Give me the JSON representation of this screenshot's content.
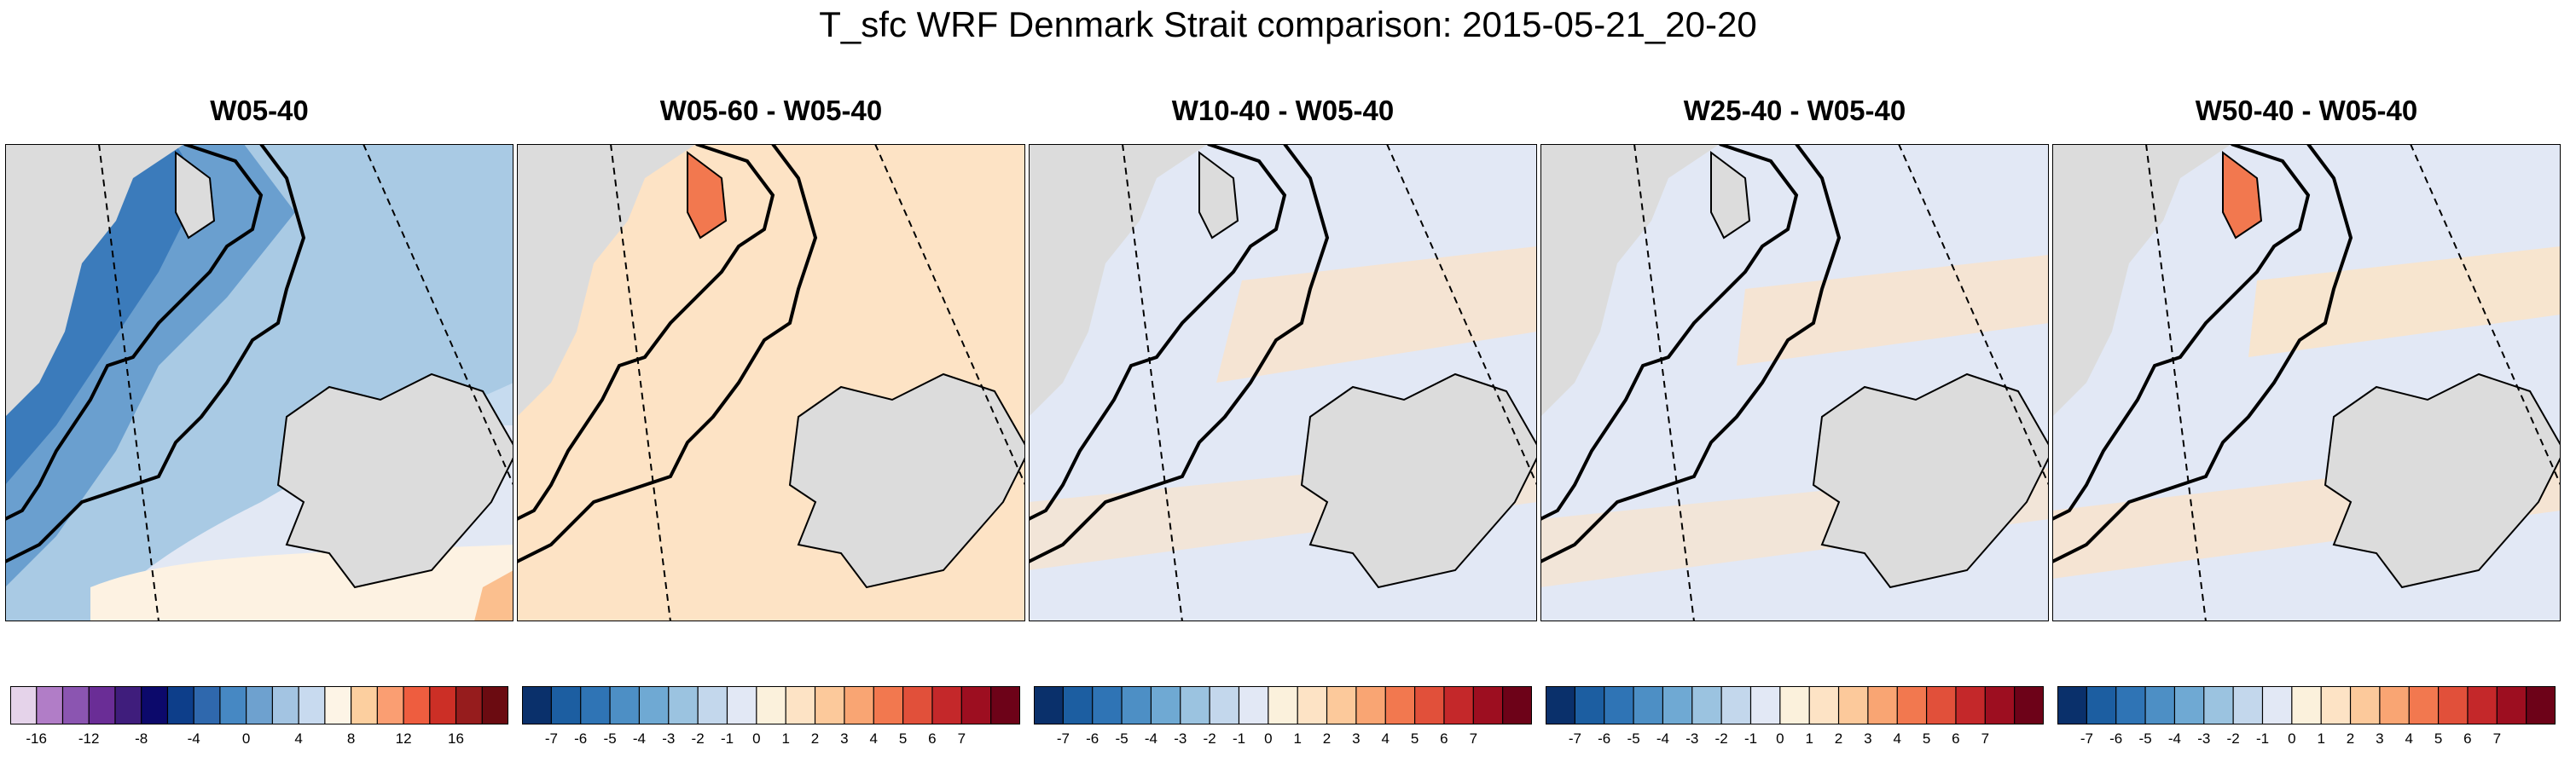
{
  "figure": {
    "title": "T_sfc WRF Denmark Strait comparison: 2015-05-21_20-20"
  },
  "panels": [
    {
      "title": "W05-40",
      "kind": "absolute",
      "colorbar": {
        "colors": [
          "#e5d3ea",
          "#b17dc7",
          "#8b55b1",
          "#6a2d96",
          "#3f1d7c",
          "#0c096b",
          "#0d3e8a",
          "#2f68ad",
          "#4688c3",
          "#6ea1cf",
          "#a3c4e2",
          "#c8daef",
          "#fdf4e6",
          "#fccf9f",
          "#fa9e72",
          "#ee5d3f",
          "#cc2f26",
          "#961c1d",
          "#6b0b11"
        ],
        "labels": [
          "-16",
          "-12",
          "-8",
          "-4",
          "0",
          "4",
          "8",
          "12",
          "16"
        ]
      }
    },
    {
      "title": "W05-60 - W05-40",
      "kind": "difference",
      "colorbar": {
        "colors": [
          "#0a306b",
          "#1c5ea1",
          "#2f74b5",
          "#4d8fc5",
          "#6fa9d3",
          "#9bc3e0",
          "#c3d7ec",
          "#e2e8f5",
          "#fbf1dc",
          "#fde3c5",
          "#fcc99b",
          "#f9a573",
          "#f2784f",
          "#e1503a",
          "#c4282a",
          "#9d0e20",
          "#6d0218"
        ],
        "labels": [
          "-7",
          "-6",
          "-5",
          "-4",
          "-3",
          "-2",
          "-1",
          "0",
          "1",
          "2",
          "3",
          "4",
          "5",
          "6",
          "7"
        ]
      }
    },
    {
      "title": "W10-40 - W05-40",
      "kind": "difference",
      "colorbar": {
        "colors": [
          "#0a306b",
          "#1c5ea1",
          "#2f74b5",
          "#4d8fc5",
          "#6fa9d3",
          "#9bc3e0",
          "#c3d7ec",
          "#e2e8f5",
          "#fbf1dc",
          "#fde3c5",
          "#fcc99b",
          "#f9a573",
          "#f2784f",
          "#e1503a",
          "#c4282a",
          "#9d0e20",
          "#6d0218"
        ],
        "labels": [
          "-7",
          "-6",
          "-5",
          "-4",
          "-3",
          "-2",
          "-1",
          "0",
          "1",
          "2",
          "3",
          "4",
          "5",
          "6",
          "7"
        ]
      }
    },
    {
      "title": "W25-40 - W05-40",
      "kind": "difference",
      "colorbar": {
        "colors": [
          "#0a306b",
          "#1c5ea1",
          "#2f74b5",
          "#4d8fc5",
          "#6fa9d3",
          "#9bc3e0",
          "#c3d7ec",
          "#e2e8f5",
          "#fbf1dc",
          "#fde3c5",
          "#fcc99b",
          "#f9a573",
          "#f2784f",
          "#e1503a",
          "#c4282a",
          "#9d0e20",
          "#6d0218"
        ],
        "labels": [
          "-7",
          "-6",
          "-5",
          "-4",
          "-3",
          "-2",
          "-1",
          "0",
          "1",
          "2",
          "3",
          "4",
          "5",
          "6",
          "7"
        ]
      }
    },
    {
      "title": "W50-40 - W05-40",
      "kind": "difference",
      "colorbar": {
        "colors": [
          "#0a306b",
          "#1c5ea1",
          "#2f74b5",
          "#4d8fc5",
          "#6fa9d3",
          "#9bc3e0",
          "#c3d7ec",
          "#e2e8f5",
          "#fbf1dc",
          "#fde3c5",
          "#fcc99b",
          "#f9a573",
          "#f2784f",
          "#e1503a",
          "#c4282a",
          "#9d0e20",
          "#6d0218"
        ],
        "labels": [
          "-7",
          "-6",
          "-5",
          "-4",
          "-3",
          "-2",
          "-1",
          "0",
          "1",
          "2",
          "3",
          "4",
          "5",
          "6",
          "7"
        ]
      }
    }
  ],
  "colors": {
    "land": "#dcdcdc",
    "frame": "#000000"
  }
}
